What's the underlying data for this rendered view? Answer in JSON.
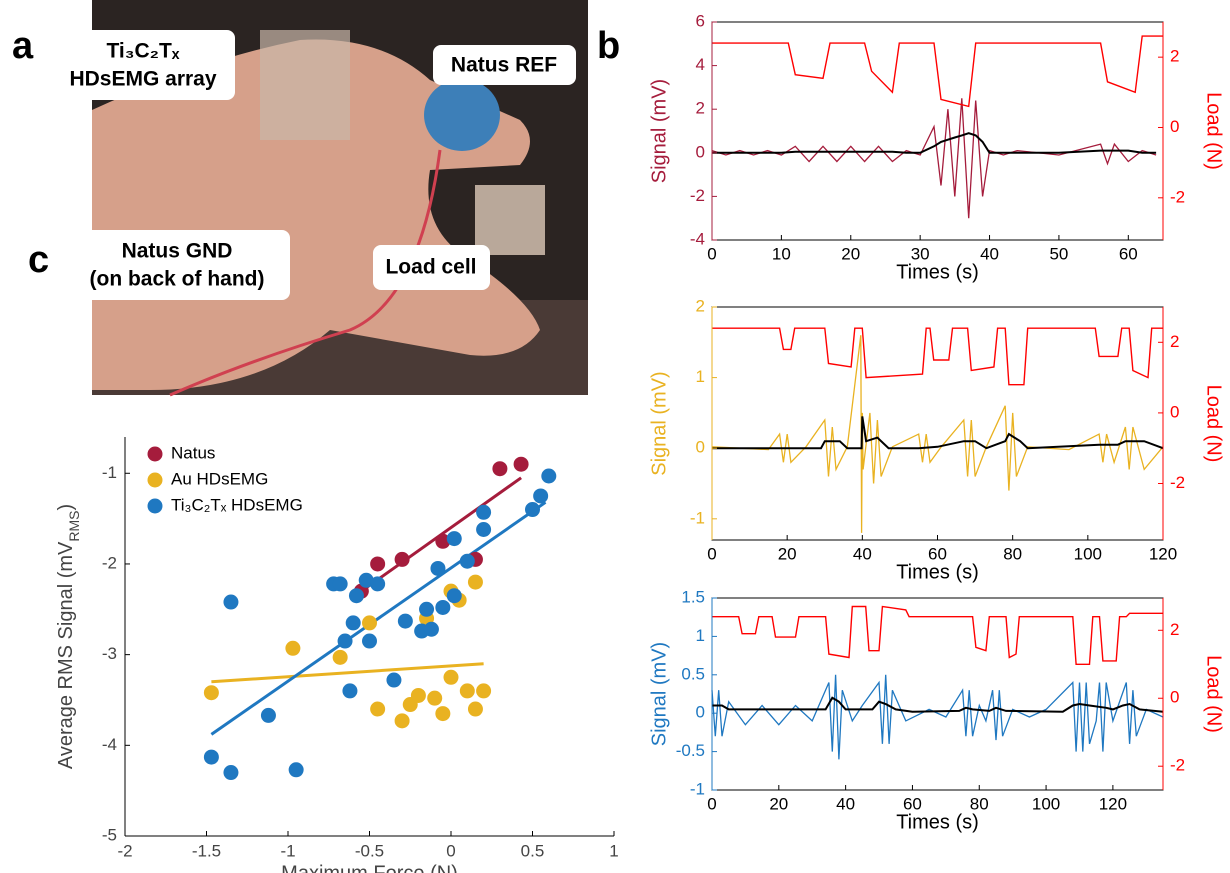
{
  "panel_labels": [
    "a",
    "b",
    "c"
  ],
  "photo": {
    "labels": [
      [
        "Ti₃C₂Tₓ",
        "HDsEMG array"
      ],
      [
        "Natus REF"
      ],
      [
        "Natus GND",
        "(on back of hand)"
      ],
      [
        "Load cell"
      ]
    ]
  },
  "chart_data": [
    {
      "type": "line",
      "x_label": "Times (s)",
      "y_label": "Signal (mV)",
      "y2_label": "Load (N)",
      "xlim": [
        0,
        65
      ],
      "xticks": [
        0,
        10,
        20,
        30,
        40,
        50,
        60
      ],
      "ylim": [
        -4,
        6
      ],
      "yticks": [
        -4,
        -2,
        0,
        2,
        4,
        6
      ],
      "y2lim": [
        -3.2,
        3.0
      ],
      "y2ticks": [
        -2,
        0,
        2
      ],
      "series": [
        {
          "color": "#a51c3c",
          "x": [
            0,
            2,
            4,
            6,
            8,
            10,
            12,
            14,
            16,
            18,
            20,
            22,
            24,
            26,
            28,
            30,
            32,
            33,
            34,
            35,
            36,
            37,
            38,
            39,
            40,
            42,
            44,
            50,
            56,
            57,
            58,
            60,
            62,
            64
          ],
          "values": [
            0.1,
            -0.1,
            0.1,
            -0.1,
            0.1,
            -0.1,
            0.3,
            -0.4,
            0.3,
            -0.4,
            0.3,
            -0.4,
            0.3,
            -0.4,
            0.1,
            -0.1,
            1.2,
            -1.5,
            2.0,
            -2.0,
            2.5,
            -3.0,
            2.4,
            -2.0,
            0.1,
            -0.1,
            0.1,
            -0.1,
            0.4,
            -0.5,
            0.4,
            -0.4,
            0.1,
            -0.1
          ]
        },
        {
          "color": "#000000",
          "x": [
            0,
            2,
            4,
            6,
            8,
            10,
            12,
            14,
            16,
            18,
            20,
            22,
            24,
            26,
            28,
            30,
            32,
            33,
            34,
            35,
            36,
            37,
            38,
            39,
            40,
            42,
            44,
            50,
            56,
            57,
            58,
            60,
            62,
            64
          ],
          "values": [
            0,
            0,
            0,
            0,
            0,
            0,
            0.05,
            0.05,
            0.05,
            0.05,
            0.05,
            0.05,
            0.05,
            0.05,
            0,
            0,
            0.3,
            0.5,
            0.6,
            0.7,
            0.8,
            0.9,
            0.8,
            0.5,
            0,
            0,
            0,
            0,
            0.1,
            0.1,
            0.1,
            0.1,
            0,
            0
          ]
        },
        {
          "color": "#ff0000",
          "axis": "y2",
          "x": [
            0,
            11,
            12,
            16,
            17,
            22,
            23,
            26,
            27,
            32,
            33,
            37,
            38,
            56,
            57,
            61,
            62,
            65
          ],
          "values": [
            2.4,
            2.4,
            1.5,
            1.4,
            2.4,
            2.4,
            1.6,
            1.0,
            2.4,
            2.4,
            0.8,
            0.6,
            2.4,
            2.4,
            1.3,
            1.0,
            2.6,
            2.6
          ]
        }
      ]
    },
    {
      "type": "line",
      "x_label": "Times (s)",
      "y_label": "Signal (mV)",
      "y2_label": "Load (N)",
      "xlim": [
        0,
        120
      ],
      "xticks": [
        0,
        20,
        40,
        60,
        80,
        100,
        120
      ],
      "ylim": [
        -1.3,
        2
      ],
      "yticks": [
        -1,
        0,
        1,
        2
      ],
      "y2lim": [
        -3.6,
        3.0
      ],
      "y2ticks": [
        -2,
        0,
        2
      ],
      "series": [
        {
          "color": "#e9b221",
          "x": [
            0,
            15,
            18,
            19,
            20,
            21,
            25,
            30,
            31,
            32,
            33,
            36,
            39.6,
            39.8,
            40,
            40.2,
            42,
            43,
            44,
            45,
            48,
            55,
            56,
            57,
            58,
            61,
            67,
            68,
            69,
            70,
            73,
            78,
            79,
            80,
            81,
            84,
            95,
            103,
            104,
            105,
            107,
            110,
            111,
            112,
            115,
            120
          ],
          "values": [
            0.02,
            -0.02,
            0.2,
            -0.2,
            0.2,
            -0.2,
            0.02,
            0.4,
            -0.4,
            0.3,
            -0.3,
            0.02,
            1.6,
            -1.2,
            0.5,
            -0.3,
            0.5,
            -0.5,
            0.4,
            -0.4,
            0.02,
            0.2,
            -0.2,
            0.2,
            -0.2,
            0.02,
            0.4,
            -0.4,
            0.4,
            -0.4,
            0.02,
            0.6,
            -0.6,
            0.5,
            -0.4,
            0.02,
            -0.02,
            0.2,
            -0.2,
            0.2,
            -0.2,
            0.3,
            -0.3,
            0.3,
            -0.3,
            0.02
          ]
        },
        {
          "color": "#000000",
          "x": [
            0,
            18,
            22,
            29,
            30,
            34,
            36,
            39.8,
            40,
            41,
            44,
            47,
            55,
            60,
            67,
            70,
            73,
            78,
            79,
            82,
            84,
            103,
            108,
            110,
            115,
            120
          ],
          "values": [
            0,
            0,
            0,
            0,
            0.1,
            0.1,
            0,
            0,
            0.45,
            0.1,
            0.15,
            0,
            0,
            0.02,
            0.1,
            0.1,
            0,
            0.1,
            0.2,
            0.1,
            0,
            0.05,
            0.05,
            0.1,
            0.1,
            0
          ]
        },
        {
          "color": "#ff0000",
          "axis": "y2",
          "x": [
            0,
            18,
            19,
            21,
            22,
            30,
            31,
            37,
            38,
            40,
            41,
            56,
            57,
            58,
            59,
            63,
            64,
            68,
            69,
            75,
            76,
            78,
            79,
            83,
            84,
            102,
            103,
            108,
            109,
            111,
            112,
            116,
            117,
            120
          ],
          "values": [
            2.4,
            2.4,
            1.8,
            1.8,
            2.4,
            2.4,
            1.4,
            1.3,
            2.4,
            2.4,
            1.0,
            1.1,
            2.4,
            2.4,
            1.5,
            1.5,
            2.4,
            2.4,
            1.2,
            1.3,
            2.4,
            2.4,
            0.8,
            0.8,
            2.4,
            2.4,
            1.6,
            1.6,
            2.4,
            2.4,
            1.2,
            1.0,
            2.4,
            2.4
          ]
        }
      ]
    },
    {
      "type": "line",
      "x_label": "Times (s)",
      "y_label": "Signal (mV)",
      "y2_label": "Load (N)",
      "xlim": [
        0,
        135
      ],
      "xticks": [
        0,
        20,
        40,
        60,
        80,
        100,
        120
      ],
      "ylim": [
        -1,
        1.5
      ],
      "yticks": [
        -1,
        -0.5,
        0,
        0.5,
        1,
        1.5
      ],
      "y2lim": [
        -2.7,
        2.95
      ],
      "y2ticks": [
        -2,
        0,
        2
      ],
      "series": [
        {
          "color": "#1f78c1",
          "x": [
            0,
            1,
            2,
            3,
            5,
            10,
            15,
            20,
            25,
            30,
            35,
            36,
            37,
            38,
            39,
            42,
            45,
            50,
            51,
            52,
            53,
            54,
            58,
            65,
            70,
            75,
            76,
            77,
            78,
            80,
            82,
            84,
            85,
            86,
            87,
            90,
            95,
            100,
            108,
            109,
            110,
            111,
            112,
            113,
            115,
            116,
            117,
            118,
            120,
            124,
            125,
            126,
            127,
            130,
            135
          ],
          "values": [
            0.3,
            -0.3,
            0.3,
            -0.3,
            0.15,
            -0.15,
            0.1,
            -0.15,
            0.1,
            -0.1,
            0.4,
            -0.5,
            0.5,
            -0.6,
            0.3,
            -0.1,
            0.1,
            0.4,
            -0.4,
            0.5,
            -0.4,
            0.3,
            -0.1,
            0.05,
            -0.05,
            0.3,
            -0.3,
            0.3,
            -0.3,
            0.1,
            -0.1,
            0.3,
            -0.35,
            0.3,
            -0.3,
            0.05,
            -0.05,
            0.05,
            0.4,
            -0.5,
            0.4,
            -0.5,
            0.4,
            -0.4,
            -0.1,
            0.4,
            -0.5,
            0.4,
            -0.1,
            0.4,
            -0.4,
            0.3,
            -0.3,
            0.05,
            -0.05
          ]
        },
        {
          "color": "#000000",
          "x": [
            0,
            3,
            5,
            30,
            34,
            36,
            38,
            40,
            48,
            50,
            52,
            55,
            60,
            74,
            76,
            78,
            83,
            85,
            88,
            105,
            108,
            110,
            113,
            118,
            120,
            123,
            125,
            128,
            135
          ],
          "values": [
            0.1,
            0.1,
            0.05,
            0.05,
            0.05,
            0.2,
            0.15,
            0.05,
            0.05,
            0.15,
            0.12,
            0.05,
            0.02,
            0.03,
            0.07,
            0.05,
            0.03,
            0.07,
            0.03,
            0.02,
            0.1,
            0.12,
            0.1,
            0.07,
            0.05,
            0.1,
            0.12,
            0.05,
            0.02
          ]
        },
        {
          "color": "#ff0000",
          "axis": "y2",
          "x": [
            0,
            8,
            9,
            13,
            14,
            18,
            19,
            25,
            26,
            34,
            35,
            41,
            42,
            46,
            47,
            50,
            51,
            58,
            59,
            78,
            79,
            82,
            83,
            88,
            89,
            91,
            92,
            108,
            109,
            113,
            114,
            116,
            117,
            121,
            122,
            124,
            125,
            135
          ],
          "values": [
            2.4,
            2.4,
            1.9,
            1.9,
            2.4,
            2.4,
            1.8,
            1.8,
            2.4,
            2.4,
            1.3,
            1.2,
            2.7,
            2.7,
            1.4,
            1.4,
            2.7,
            2.6,
            2.4,
            2.4,
            1.5,
            1.4,
            2.4,
            2.4,
            1.2,
            1.3,
            2.4,
            2.4,
            1.0,
            1.0,
            2.4,
            2.4,
            1.1,
            1.1,
            2.4,
            2.4,
            2.5,
            2.5
          ]
        }
      ]
    },
    {
      "type": "scatter",
      "x_label": "Maximum Force (N)",
      "y_label": [
        "Average RMS Signal (mV",
        "RMS",
        ")"
      ],
      "xlim": [
        -2,
        1
      ],
      "xticks": [
        -2,
        -1.5,
        -1,
        -0.5,
        0,
        0.5,
        1
      ],
      "ylim": [
        -5,
        -0.6
      ],
      "yticks": [
        -5,
        -4,
        -3,
        -2,
        -1
      ],
      "legend": "upper left",
      "series": [
        {
          "name": "Natus",
          "color": "#a51c3c",
          "x": [
            -0.55,
            -0.45,
            -0.3,
            -0.05,
            0.15,
            0.3,
            0.43
          ],
          "values": [
            -2.3,
            -2.0,
            -1.95,
            -1.75,
            -1.95,
            -0.95,
            -0.9
          ]
        },
        {
          "name": "Au HDsEMG",
          "color": "#e9b221",
          "x": [
            -1.47,
            -0.97,
            -0.68,
            -0.5,
            -0.45,
            -0.3,
            -0.25,
            -0.2,
            -0.1,
            -0.05,
            0,
            0.05,
            0.1,
            0.15,
            0.2,
            0,
            0.15,
            -0.15
          ],
          "values": [
            -3.42,
            -2.93,
            -3.03,
            -2.65,
            -3.6,
            -3.73,
            -3.55,
            -3.45,
            -3.48,
            -3.65,
            -3.25,
            -2.4,
            -3.4,
            -3.6,
            -3.4,
            -2.3,
            -2.2,
            -2.6
          ]
        },
        {
          "name": "Ti₃C₂Tₓ HDsEMG",
          "color": "#1f78c1",
          "x": [
            -1.47,
            -1.35,
            -1.35,
            -1.12,
            -0.95,
            -0.72,
            -0.68,
            -0.65,
            -0.62,
            -0.6,
            -0.58,
            -0.52,
            -0.45,
            -0.5,
            -0.35,
            -0.28,
            -0.18,
            -0.15,
            -0.12,
            -0.08,
            -0.05,
            0.02,
            0.02,
            0.1,
            0.2,
            0.2,
            0.5,
            0.55,
            0.6
          ],
          "values": [
            -4.13,
            -4.3,
            -2.42,
            -3.67,
            -4.27,
            -2.22,
            -2.22,
            -2.85,
            -3.4,
            -2.65,
            -2.35,
            -2.18,
            -2.22,
            -2.85,
            -3.28,
            -2.63,
            -2.74,
            -2.5,
            -2.72,
            -2.05,
            -2.48,
            -1.72,
            -2.35,
            -1.97,
            -1.43,
            -1.62,
            -1.4,
            -1.25,
            -1.03
          ]
        }
      ],
      "fits": [
        {
          "color": "#a51c3c",
          "x": [
            -0.55,
            0.43
          ],
          "values": [
            -2.3,
            -1.05
          ]
        },
        {
          "color": "#e9b221",
          "x": [
            -1.47,
            0.2
          ],
          "values": [
            -3.3,
            -3.1
          ]
        },
        {
          "color": "#1f78c1",
          "x": [
            -1.47,
            0.58
          ],
          "values": [
            -3.88,
            -1.32
          ]
        }
      ]
    }
  ]
}
